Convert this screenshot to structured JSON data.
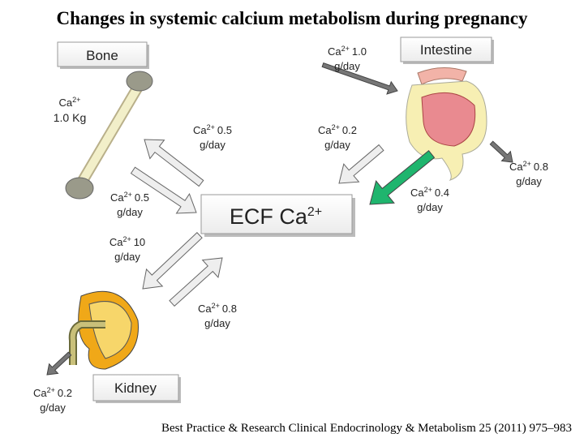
{
  "title": "Changes in systemic calcium metabolism during pregnancy",
  "boxes": {
    "bone": "Bone",
    "intestine": "Intestine",
    "ecf": {
      "text": "ECF Ca",
      "sup": "2+"
    },
    "kidney": "Kidney"
  },
  "bone_content": {
    "ion": "Ca",
    "charge": "2+",
    "amount": "1.0 Kg"
  },
  "flows": [
    {
      "ion": "Ca",
      "charge": "2+",
      "amount": "1.0",
      "unit": "g/day"
    },
    {
      "ion": "Ca",
      "charge": "2+",
      "amount": "0.5",
      "unit": "g/day"
    },
    {
      "ion": "Ca",
      "charge": "2+",
      "amount": "0.2",
      "unit": "g/day"
    },
    {
      "ion": "Ca",
      "charge": "2+",
      "amount": "0.8",
      "unit": "g/day"
    },
    {
      "ion": "Ca",
      "charge": "2+",
      "amount": "0.4",
      "unit": "g/day"
    },
    {
      "ion": "Ca",
      "charge": "2+",
      "amount": "0.5",
      "unit": "g/day"
    },
    {
      "ion": "Ca",
      "charge": "2+",
      "amount": "10",
      "unit": "g/day"
    },
    {
      "ion": "Ca",
      "charge": "2+",
      "amount": "0.8",
      "unit": "g/day"
    },
    {
      "ion": "Ca",
      "charge": "2+",
      "amount": "0.2",
      "unit": "g/day"
    }
  ],
  "citation": "Best Practice & Research Clinical Endocrinology & Metabolism 25 (2011) 975–983"
}
